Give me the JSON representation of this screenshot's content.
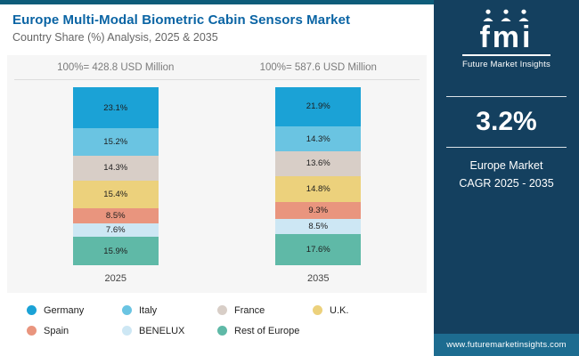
{
  "header": {
    "title": "Europe Multi-Modal Biometric Cabin Sensors Market",
    "subtitle": "Country Share (%) Analysis, 2025 & 2035"
  },
  "sidebar": {
    "logo_text": "fmi",
    "brand": "Future Market Insights",
    "cagr_value": "3.2%",
    "cagr_label_line1": "Europe Market",
    "cagr_label_line2": "CAGR 2025 - 2035",
    "website": "www.futuremarketinsights.com",
    "background_color": "#14405f",
    "footer_color": "#1d6c90"
  },
  "chart_data": {
    "type": "bar",
    "subtype": "stacked-100-percent",
    "title": "Europe Multi-Modal Biometric Cabin Sensors Market",
    "subtitle": "Country Share (%) Analysis, 2025 & 2035",
    "categories": [
      "2025",
      "2035"
    ],
    "totals": [
      "100%= 428.8 USD Million",
      "100%= 587.6 USD Million"
    ],
    "value_suffix": "%",
    "ylim": [
      0,
      100
    ],
    "legend_position": "bottom",
    "series": [
      {
        "name": "Germany",
        "color": "#1ba2d6",
        "values": [
          23.1,
          21.9
        ]
      },
      {
        "name": "Italy",
        "color": "#6ac4e2",
        "values": [
          15.2,
          14.3
        ]
      },
      {
        "name": "France",
        "color": "#d8cec7",
        "values": [
          14.3,
          13.6
        ]
      },
      {
        "name": "U.K.",
        "color": "#ecd17c",
        "values": [
          15.4,
          14.8
        ]
      },
      {
        "name": "Spain",
        "color": "#e9957e",
        "values": [
          8.5,
          9.3
        ]
      },
      {
        "name": "BENELUX",
        "color": "#cde7f4",
        "values": [
          7.6,
          8.5
        ]
      },
      {
        "name": "Rest of Europe",
        "color": "#5fb9a7",
        "values": [
          15.9,
          17.6
        ]
      }
    ]
  }
}
